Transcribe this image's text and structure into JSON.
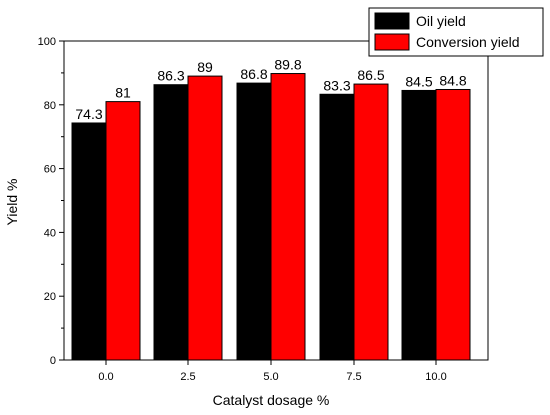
{
  "chart_data": {
    "type": "bar",
    "title": "",
    "xlabel": "Catalyst dosage %",
    "ylabel": "Yield %",
    "categories": [
      "0.0",
      "2.5",
      "5.0",
      "7.5",
      "10.0"
    ],
    "ylim": [
      0,
      100
    ],
    "yticks": [
      "0",
      "20",
      "40",
      "60",
      "80",
      "100"
    ],
    "series": [
      {
        "name": "Oil yield",
        "color": "#000000",
        "values": [
          74.3,
          86.3,
          86.8,
          83.3,
          84.5
        ],
        "labels": [
          "74.3",
          "86.3",
          "86.8",
          "83.3",
          "84.5"
        ]
      },
      {
        "name": "Conversion yield",
        "color": "#ff0000",
        "values": [
          81,
          89,
          89.8,
          86.5,
          84.8
        ],
        "labels": [
          "81",
          "89",
          "89.8",
          "86.5",
          "84.8"
        ]
      }
    ],
    "legend": "top-right",
    "grid": false
  }
}
